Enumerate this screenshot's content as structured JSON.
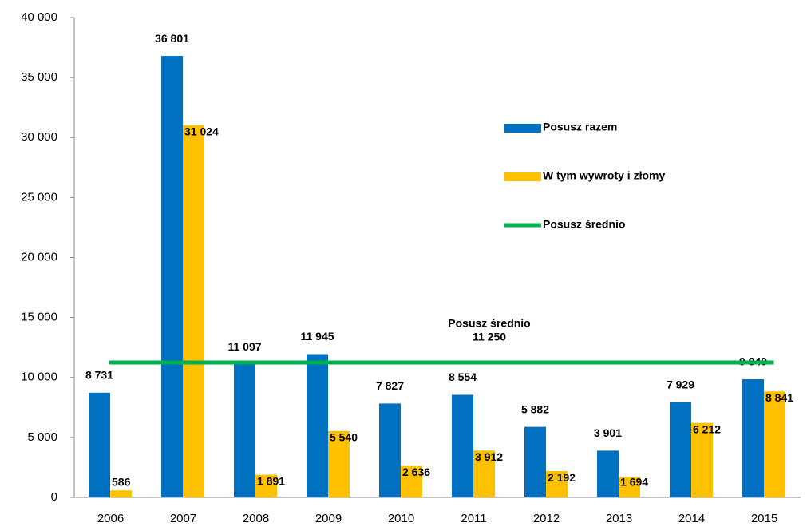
{
  "chart_data": {
    "type": "bar",
    "categories": [
      "2006",
      "2007",
      "2008",
      "2009",
      "2010",
      "2011",
      "2012",
      "2013",
      "2014",
      "2015"
    ],
    "series": [
      {
        "name": "Posusz razem",
        "color": "#0070c0",
        "values": [
          8731,
          36801,
          11097,
          11945,
          7827,
          8554,
          5882,
          3901,
          7929,
          9849
        ],
        "value_labels": [
          "8 731",
          "36 801",
          "11 097",
          "11 945",
          "7 827",
          "8 554",
          "5 882",
          "3 901",
          "7 929",
          "9 849"
        ]
      },
      {
        "name": "W tym wywroty i złomy",
        "color": "#ffc000",
        "values": [
          586,
          31024,
          1891,
          5540,
          2636,
          3912,
          2192,
          1694,
          6212,
          8841
        ],
        "value_labels": [
          "586",
          "31 024",
          "1 891",
          "5 540",
          "2 636",
          "3 912",
          "2 192",
          "1 694",
          "6 212",
          "8 841"
        ]
      }
    ],
    "average": {
      "name": "Posusz średnio",
      "color": "#00b050",
      "value": 11250,
      "value_label": "11 250"
    },
    "ylim": [
      0,
      40000
    ],
    "yticks": [
      0,
      {
        "value": 5000,
        "label": "5 000"
      },
      {
        "value": 10000,
        "label": "10 000"
      },
      {
        "value": 15000,
        "label": "15 000"
      },
      {
        "value": 20000,
        "label": "20 000"
      },
      {
        "value": 25000,
        "label": "25 000"
      },
      {
        "value": 30000,
        "label": "30 000"
      },
      {
        "value": 35000,
        "label": "35 000"
      },
      {
        "value": 40000,
        "label": "40 000"
      }
    ],
    "grid": false
  }
}
